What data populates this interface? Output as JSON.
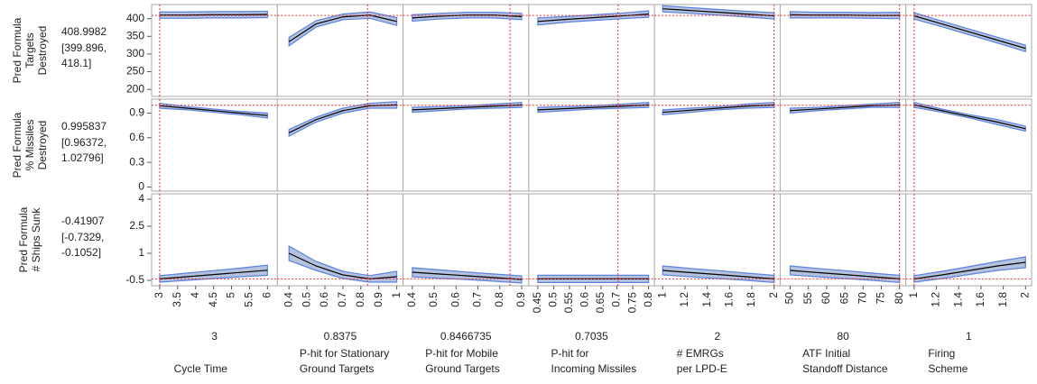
{
  "chart_data": {
    "type": "profiler",
    "responses": [
      {
        "label": [
          "Pred Formula",
          "Targets",
          "Destroyed"
        ],
        "current": 408.9982,
        "ci_text": [
          "[399.896,",
          "418.1]"
        ],
        "ylim": [
          180,
          440
        ],
        "yticks": [
          200,
          250,
          300,
          350,
          400
        ]
      },
      {
        "label": [
          "Pred Formula",
          "% Missiles",
          "Destroyed"
        ],
        "current": 0.995837,
        "ci_text": [
          "[0.96372,",
          "1.02796]"
        ],
        "ylim": [
          -0.05,
          1.07
        ],
        "yticks": [
          0,
          0.3,
          0.6,
          0.9
        ]
      },
      {
        "label": [
          "Pred Formula",
          "# Ships Sunk"
        ],
        "current": -0.41907,
        "ci_text": [
          "[-0.7329,",
          "-0.1052]"
        ],
        "ylim": [
          -0.8,
          4.3
        ],
        "yticks": [
          -0.5,
          1,
          2.5,
          4
        ]
      }
    ],
    "factors": [
      {
        "name": [
          "Cycle Time"
        ],
        "current": 3,
        "xlim": [
          2.85,
          6.2
        ],
        "xticks": [
          3,
          3.5,
          4,
          4.5,
          5,
          5.5,
          6
        ],
        "x": [
          3,
          3.75,
          4.5,
          5.25,
          6
        ]
      },
      {
        "name": [
          "P-hit for Stationary",
          "Ground Targets"
        ],
        "current": 0.8375,
        "xlim": [
          0.35,
          1.02
        ],
        "xticks": [
          0.4,
          0.5,
          0.6,
          0.7,
          0.8,
          0.9,
          1
        ],
        "x": [
          0.4,
          0.55,
          0.7,
          0.85,
          1
        ]
      },
      {
        "name": [
          "P-hit for Mobile",
          "Ground Targets"
        ],
        "current": 0.8466735,
        "xlim": [
          0.37,
          0.92
        ],
        "xticks": [
          0.4,
          0.5,
          0.6,
          0.7,
          0.8,
          0.9
        ],
        "x": [
          0.4,
          0.525,
          0.65,
          0.775,
          0.9
        ]
      },
      {
        "name": [
          "P-hit for",
          "Incoming Missiles"
        ],
        "current": 0.7035,
        "xlim": [
          0.43,
          0.81
        ],
        "xticks": [
          0.45,
          0.5,
          0.55,
          0.6,
          0.65,
          0.7,
          0.75,
          0.8
        ],
        "x": [
          0.45,
          0.54,
          0.63,
          0.72,
          0.8
        ]
      },
      {
        "name": [
          "# EMRGs",
          "per LPD-E"
        ],
        "current": 2,
        "xlim": [
          0.95,
          2.03
        ],
        "xticks": [
          1,
          1.2,
          1.4,
          1.6,
          1.8,
          2
        ],
        "x": [
          1,
          1.25,
          1.5,
          1.75,
          2
        ]
      },
      {
        "name": [
          "ATF Initial",
          "Standoff Distance"
        ],
        "current": 80,
        "xlim": [
          48,
          81
        ],
        "xticks": [
          50,
          55,
          60,
          65,
          70,
          75,
          80
        ],
        "x": [
          50,
          57.5,
          65,
          72.5,
          80
        ]
      },
      {
        "name": [
          "Firing",
          "Scheme"
        ],
        "current": 1,
        "xlim": [
          0.95,
          2.03
        ],
        "xticks": [
          1,
          1.2,
          1.4,
          1.6,
          1.8,
          2
        ],
        "x": [
          1,
          1.25,
          1.5,
          1.75,
          2
        ]
      }
    ],
    "cells": [
      [
        {
          "pred": [
            410,
            410,
            411,
            411,
            412
          ],
          "lower": [
            401,
            401,
            402,
            402,
            403
          ],
          "upper": [
            419,
            419,
            420,
            420,
            421
          ]
        },
        {
          "pred": [
            335,
            385,
            405,
            410,
            392
          ],
          "lower": [
            323,
            376,
            397,
            401,
            381
          ],
          "upper": [
            347,
            394,
            413,
            419,
            403
          ]
        },
        {
          "pred": [
            402,
            407,
            410,
            410,
            406
          ],
          "lower": [
            393,
            399,
            402,
            402,
            397
          ],
          "upper": [
            411,
            415,
            418,
            418,
            415
          ]
        },
        {
          "pred": [
            392,
            398,
            403,
            408,
            413
          ],
          "lower": [
            382,
            390,
            395,
            400,
            404
          ],
          "upper": [
            402,
            406,
            411,
            416,
            422
          ]
        },
        {
          "pred": [
            428,
            423,
            418,
            413,
            408
          ],
          "lower": [
            419,
            415,
            410,
            405,
            399
          ],
          "upper": [
            437,
            431,
            426,
            421,
            417
          ]
        },
        {
          "pred": [
            411,
            410,
            410,
            409,
            409
          ],
          "lower": [
            402,
            402,
            402,
            401,
            400
          ],
          "upper": [
            420,
            418,
            418,
            417,
            418
          ]
        },
        {
          "pred": [
            408,
            385,
            362,
            339,
            316
          ],
          "lower": [
            399,
            377,
            354,
            331,
            307
          ],
          "upper": [
            417,
            393,
            370,
            347,
            325
          ]
        }
      ],
      [
        {
          "pred": [
            0.99,
            0.96,
            0.93,
            0.9,
            0.87
          ],
          "lower": [
            0.96,
            0.94,
            0.91,
            0.88,
            0.84
          ],
          "upper": [
            1.02,
            0.98,
            0.95,
            0.92,
            0.9
          ]
        },
        {
          "pred": [
            0.66,
            0.82,
            0.93,
            0.99,
            1
          ],
          "lower": [
            0.62,
            0.79,
            0.9,
            0.96,
            0.96
          ],
          "upper": [
            0.7,
            0.85,
            0.96,
            1.02,
            1.04
          ]
        },
        {
          "pred": [
            0.94,
            0.955,
            0.97,
            0.985,
            1
          ],
          "lower": [
            0.91,
            0.93,
            0.95,
            0.96,
            0.97
          ],
          "upper": [
            0.97,
            0.98,
            0.99,
            1.01,
            1.03
          ]
        },
        {
          "pred": [
            0.94,
            0.955,
            0.97,
            0.985,
            1
          ],
          "lower": [
            0.91,
            0.93,
            0.95,
            0.96,
            0.97
          ],
          "upper": [
            0.97,
            0.98,
            0.99,
            1.01,
            1.03
          ]
        },
        {
          "pred": [
            0.91,
            0.935,
            0.96,
            0.985,
            1
          ],
          "lower": [
            0.88,
            0.91,
            0.94,
            0.96,
            0.97
          ],
          "upper": [
            0.94,
            0.96,
            0.98,
            1.01,
            1.03
          ]
        },
        {
          "pred": [
            0.93,
            0.95,
            0.97,
            0.99,
            1
          ],
          "lower": [
            0.9,
            0.93,
            0.95,
            0.97,
            0.97
          ],
          "upper": [
            0.96,
            0.97,
            0.99,
            1.01,
            1.03
          ]
        },
        {
          "pred": [
            1,
            0.93,
            0.86,
            0.79,
            0.71
          ],
          "lower": [
            0.97,
            0.91,
            0.84,
            0.76,
            0.68
          ],
          "upper": [
            1.03,
            0.95,
            0.88,
            0.82,
            0.74
          ]
        }
      ],
      [
        {
          "pred": [
            -0.42,
            -0.3,
            -0.18,
            -0.06,
            0.06
          ],
          "lower": [
            -0.6,
            -0.5,
            -0.4,
            -0.3,
            -0.22
          ],
          "upper": [
            -0.24,
            -0.1,
            0.04,
            0.18,
            0.34
          ]
        },
        {
          "pred": [
            1,
            0.3,
            -0.2,
            -0.42,
            -0.3
          ],
          "lower": [
            0.6,
            0.05,
            -0.4,
            -0.6,
            -0.6
          ],
          "upper": [
            1.4,
            0.55,
            0,
            -0.24,
            0
          ]
        },
        {
          "pred": [
            -0.05,
            -0.15,
            -0.25,
            -0.35,
            -0.45
          ],
          "lower": [
            -0.3,
            -0.38,
            -0.46,
            -0.55,
            -0.65
          ],
          "upper": [
            0.2,
            0.08,
            -0.04,
            -0.15,
            -0.25
          ]
        },
        {
          "pred": [
            -0.42,
            -0.42,
            -0.42,
            -0.42,
            -0.42
          ],
          "lower": [
            -0.62,
            -0.62,
            -0.62,
            -0.62,
            -0.62
          ],
          "upper": [
            -0.22,
            -0.22,
            -0.22,
            -0.22,
            -0.22
          ]
        },
        {
          "pred": [
            0.05,
            -0.07,
            -0.18,
            -0.3,
            -0.42
          ],
          "lower": [
            -0.2,
            -0.3,
            -0.4,
            -0.5,
            -0.62
          ],
          "upper": [
            0.3,
            0.16,
            0.04,
            -0.1,
            -0.22
          ]
        },
        {
          "pred": [
            0.05,
            -0.07,
            -0.18,
            -0.3,
            -0.42
          ],
          "lower": [
            -0.2,
            -0.3,
            -0.4,
            -0.5,
            -0.62
          ],
          "upper": [
            0.3,
            0.16,
            0.04,
            -0.1,
            -0.22
          ]
        },
        {
          "pred": [
            -0.42,
            -0.2,
            0.05,
            0.3,
            0.5
          ],
          "lower": [
            -0.6,
            -0.4,
            -0.17,
            0.05,
            0.2
          ],
          "upper": [
            -0.24,
            0,
            0.27,
            0.55,
            0.8
          ]
        }
      ]
    ],
    "colors": {
      "current": "#e8333a",
      "ci": "#3a6fd8",
      "band": "#b4c2de",
      "band_edge": "#5b82e0",
      "line": "#000000"
    }
  }
}
